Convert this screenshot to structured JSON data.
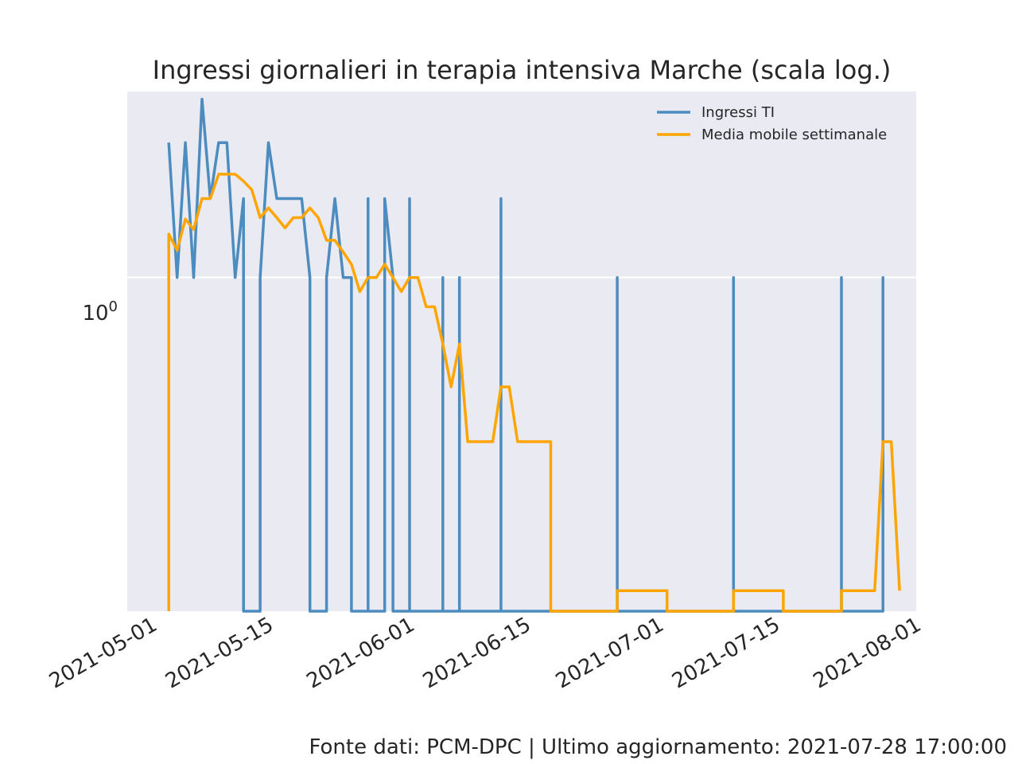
{
  "chart_data": {
    "type": "line",
    "title": "Ingressi giornalieri in terapia intensiva Marche (scala log.)",
    "xlabel": "",
    "ylabel": "",
    "yscale": "log",
    "grid": true,
    "legend_position": "top-right",
    "xlim": [
      "2021-04-28",
      "2021-08-01"
    ],
    "ylim": [
      0.18,
      2.6
    ],
    "x_tick_labels": [
      "2021-05-01",
      "2021-05-15",
      "2021-06-01",
      "2021-06-15",
      "2021-07-01",
      "2021-07-15",
      "2021-08-01"
    ],
    "y_tick_label": {
      "base": "10",
      "exponent": "0",
      "value": 1
    },
    "series": [
      {
        "name": "Ingressi TI",
        "color": "#4c8cbf",
        "points": [
          [
            "2021-05-03",
            2
          ],
          [
            "2021-05-04",
            1
          ],
          [
            "2021-05-05",
            2
          ],
          [
            "2021-05-06",
            1
          ],
          [
            "2021-05-07",
            2.5
          ],
          [
            "2021-05-08",
            1.5
          ],
          [
            "2021-05-09",
            2
          ],
          [
            "2021-05-10",
            2
          ],
          [
            "2021-05-11",
            1
          ],
          [
            "2021-05-12",
            1.5
          ],
          [
            "2021-05-12",
            0
          ],
          [
            "2021-05-14",
            0
          ],
          [
            "2021-05-14",
            1
          ],
          [
            "2021-05-15",
            2
          ],
          [
            "2021-05-16",
            1.5
          ],
          [
            "2021-05-17",
            1.5
          ],
          [
            "2021-05-18",
            1.5
          ],
          [
            "2021-05-19",
            1.5
          ],
          [
            "2021-05-20",
            1
          ],
          [
            "2021-05-20",
            0
          ],
          [
            "2021-05-22",
            0
          ],
          [
            "2021-05-22",
            1
          ],
          [
            "2021-05-23",
            1.5
          ],
          [
            "2021-05-24",
            1
          ],
          [
            "2021-05-25",
            1
          ],
          [
            "2021-05-25",
            0
          ],
          [
            "2021-05-27",
            0
          ],
          [
            "2021-05-27",
            1.5
          ],
          [
            "2021-05-27",
            0
          ],
          [
            "2021-05-29",
            0
          ],
          [
            "2021-05-29",
            1.5
          ],
          [
            "2021-05-30",
            1
          ],
          [
            "2021-05-30",
            0
          ],
          [
            "2021-06-01",
            0
          ],
          [
            "2021-06-01",
            1.5
          ],
          [
            "2021-06-01",
            0
          ],
          [
            "2021-06-05",
            0
          ],
          [
            "2021-06-05",
            1
          ],
          [
            "2021-06-05",
            0
          ],
          [
            "2021-06-07",
            0
          ],
          [
            "2021-06-07",
            1
          ],
          [
            "2021-06-07",
            0
          ],
          [
            "2021-06-12",
            0
          ],
          [
            "2021-06-12",
            1.5
          ],
          [
            "2021-06-12",
            0
          ],
          [
            "2021-06-26",
            0
          ],
          [
            "2021-06-26",
            1
          ],
          [
            "2021-06-26",
            0
          ],
          [
            "2021-07-10",
            0
          ],
          [
            "2021-07-10",
            1
          ],
          [
            "2021-07-10",
            0
          ],
          [
            "2021-07-23",
            0
          ],
          [
            "2021-07-23",
            1
          ],
          [
            "2021-07-23",
            0
          ],
          [
            "2021-07-28",
            0
          ],
          [
            "2021-07-28",
            1
          ],
          [
            "2021-07-28",
            0
          ]
        ]
      },
      {
        "name": "Media mobile settimanale",
        "color": "#ffa500",
        "points": [
          [
            "2021-05-03",
            0
          ],
          [
            "2021-05-03",
            1.25
          ],
          [
            "2021-05-04",
            1.15
          ],
          [
            "2021-05-05",
            1.35
          ],
          [
            "2021-05-06",
            1.28
          ],
          [
            "2021-05-07",
            1.5
          ],
          [
            "2021-05-08",
            1.5
          ],
          [
            "2021-05-09",
            1.7
          ],
          [
            "2021-05-10",
            1.7
          ],
          [
            "2021-05-11",
            1.7
          ],
          [
            "2021-05-12",
            1.64
          ],
          [
            "2021-05-13",
            1.57
          ],
          [
            "2021-05-14",
            1.36
          ],
          [
            "2021-05-15",
            1.43
          ],
          [
            "2021-05-16",
            1.36
          ],
          [
            "2021-05-17",
            1.29
          ],
          [
            "2021-05-18",
            1.36
          ],
          [
            "2021-05-19",
            1.36
          ],
          [
            "2021-05-20",
            1.43
          ],
          [
            "2021-05-21",
            1.36
          ],
          [
            "2021-05-22",
            1.21
          ],
          [
            "2021-05-23",
            1.21
          ],
          [
            "2021-05-24",
            1.14
          ],
          [
            "2021-05-25",
            1.07
          ],
          [
            "2021-05-26",
            0.93
          ],
          [
            "2021-05-27",
            1.0
          ],
          [
            "2021-05-28",
            1.0
          ],
          [
            "2021-05-29",
            1.07
          ],
          [
            "2021-05-30",
            1.0
          ],
          [
            "2021-05-31",
            0.93
          ],
          [
            "2021-06-01",
            1.0
          ],
          [
            "2021-06-02",
            1.0
          ],
          [
            "2021-06-03",
            0.86
          ],
          [
            "2021-06-04",
            0.86
          ],
          [
            "2021-06-05",
            0.71
          ],
          [
            "2021-06-06",
            0.57
          ],
          [
            "2021-06-07",
            0.71
          ],
          [
            "2021-06-08",
            0.43
          ],
          [
            "2021-06-11",
            0.43
          ],
          [
            "2021-06-12",
            0.57
          ],
          [
            "2021-06-13",
            0.57
          ],
          [
            "2021-06-14",
            0.43
          ],
          [
            "2021-06-18",
            0.43
          ],
          [
            "2021-06-18",
            0
          ],
          [
            "2021-06-26",
            0
          ],
          [
            "2021-06-26",
            0.2
          ],
          [
            "2021-07-02",
            0.2
          ],
          [
            "2021-07-02",
            0
          ],
          [
            "2021-07-10",
            0
          ],
          [
            "2021-07-10",
            0.2
          ],
          [
            "2021-07-16",
            0.2
          ],
          [
            "2021-07-16",
            0
          ],
          [
            "2021-07-23",
            0
          ],
          [
            "2021-07-23",
            0.2
          ],
          [
            "2021-07-27",
            0.2
          ],
          [
            "2021-07-28",
            0.43
          ],
          [
            "2021-07-29",
            0.43
          ],
          [
            "2021-07-30",
            0.2
          ]
        ]
      }
    ]
  },
  "footer": "Fonte dati: PCM-DPC | Ultimo aggiornamento: 2021-07-28 17:00:00"
}
